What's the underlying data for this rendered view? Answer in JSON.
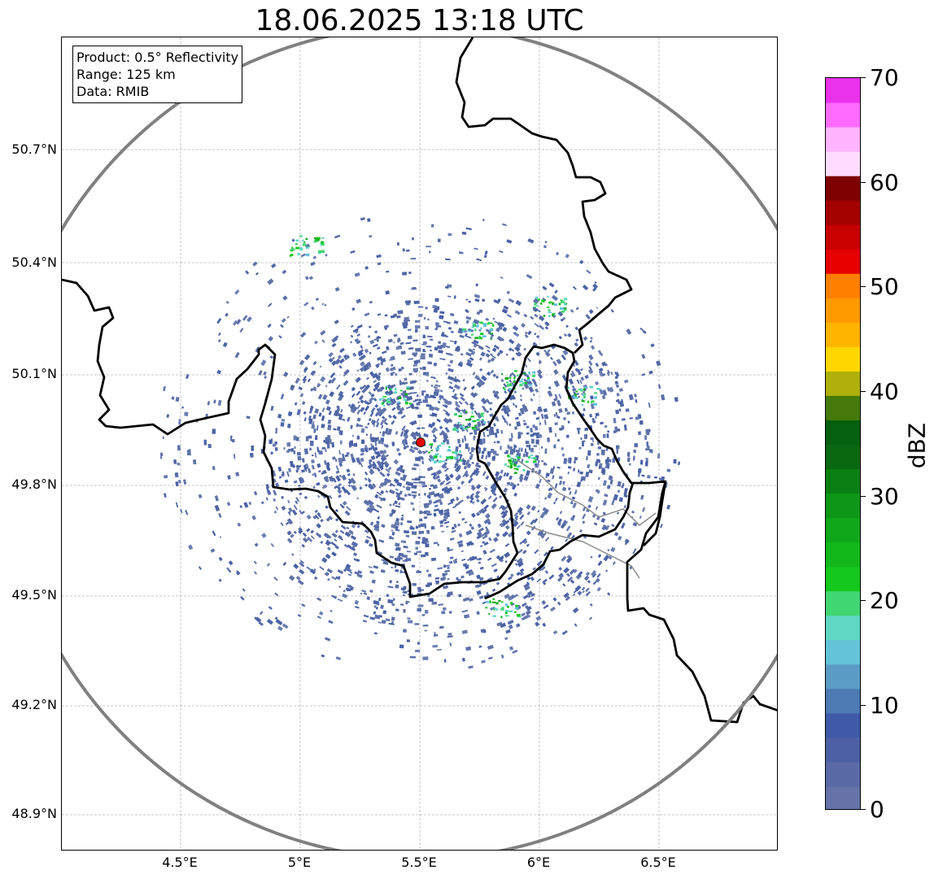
{
  "title": "18.06.2025 13:18 UTC",
  "info_box": {
    "line1": "Product: 0.5° Reflectivity",
    "line2": "Range: 125 km",
    "line3": "Data: RMIB"
  },
  "lat_ticks": [
    "50.7°N",
    "50.4°N",
    "50.1°N",
    "49.8°N",
    "49.5°N",
    "49.2°N",
    "48.9°N"
  ],
  "lon_ticks": [
    "4.5°E",
    "5°E",
    "5.5°E",
    "6°E",
    "6.5°E"
  ],
  "radar_site": {
    "lon": 5.505,
    "lat": 49.915,
    "marker_color": "#e60000"
  },
  "range_ring_color": "#808080",
  "colorbar": {
    "label": "dBZ",
    "tick_labels": [
      "0",
      "10",
      "20",
      "30",
      "40",
      "50",
      "60",
      "70"
    ],
    "colors": [
      "#6673a8",
      "#5a6aa6",
      "#4d60a3",
      "#3f5aa6",
      "#4d7ab3",
      "#5a9cc6",
      "#63c3d8",
      "#5fd7c3",
      "#40d672",
      "#14c81e",
      "#12b81a",
      "#10a81a",
      "#0e9717",
      "#0b8012",
      "#086910",
      "#056010",
      "#457a0a",
      "#afb00b",
      "#ffd700",
      "#ffb400",
      "#ff9900",
      "#ff7f00",
      "#e60000",
      "#c80000",
      "#a30000",
      "#7f0000",
      "#ffdcff",
      "#ffb4ff",
      "#ff6bff",
      "#eb32eb"
    ]
  }
}
